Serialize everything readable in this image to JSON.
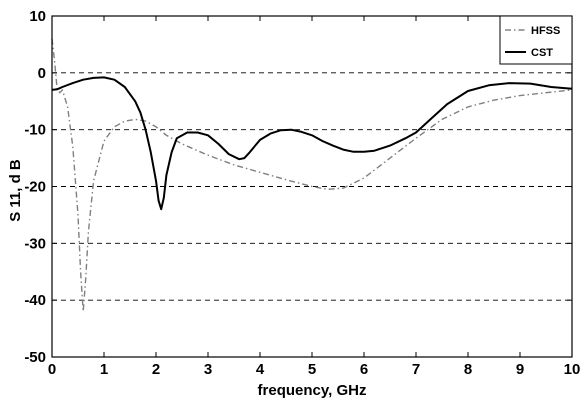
{
  "chart_data": {
    "type": "line",
    "title": "",
    "xlabel": "frequency, GHz",
    "ylabel": "S 11, d B",
    "xlim": [
      0,
      10
    ],
    "ylim": [
      -50,
      10
    ],
    "xticks": [
      "0",
      "1",
      "2",
      "3",
      "4",
      "5",
      "6",
      "7",
      "8",
      "9",
      "10"
    ],
    "yticks": [
      "10",
      "0",
      "-10",
      "-20",
      "-30",
      "-40",
      "-50"
    ],
    "grid": "horizontal dashed",
    "legend_position": "top-right",
    "series": [
      {
        "name": "HFSS",
        "color": "#808080",
        "style": "dash-dot",
        "x": [
          0.0,
          0.05,
          0.1,
          0.15,
          0.2,
          0.3,
          0.4,
          0.5,
          0.55,
          0.6,
          0.65,
          0.7,
          0.8,
          1.0,
          1.2,
          1.4,
          1.6,
          1.8,
          2.0,
          2.2,
          2.5,
          3.0,
          3.5,
          4.0,
          4.5,
          5.0,
          5.3,
          5.6,
          6.0,
          6.5,
          7.0,
          7.5,
          8.0,
          8.5,
          9.0,
          9.5,
          10.0
        ],
        "y": [
          6,
          2,
          -3,
          -3.5,
          -3,
          -6,
          -13,
          -25,
          -35,
          -42,
          -36,
          -28,
          -19,
          -12,
          -9.5,
          -8.5,
          -8.2,
          -8.5,
          -9.5,
          -11,
          -12.5,
          -14.5,
          -16.2,
          -17.5,
          -18.8,
          -20,
          -20.5,
          -20.3,
          -18.5,
          -15,
          -11.5,
          -8.2,
          -6,
          -4.8,
          -4,
          -3.5,
          -3
        ]
      },
      {
        "name": "CST",
        "color": "#000000",
        "style": "solid",
        "x": [
          0.0,
          0.1,
          0.2,
          0.4,
          0.6,
          0.8,
          1.0,
          1.2,
          1.4,
          1.6,
          1.7,
          1.8,
          1.9,
          2.0,
          2.05,
          2.1,
          2.15,
          2.2,
          2.3,
          2.4,
          2.6,
          2.8,
          3.0,
          3.2,
          3.4,
          3.6,
          3.7,
          3.8,
          4.0,
          4.2,
          4.4,
          4.6,
          4.8,
          5.0,
          5.2,
          5.4,
          5.6,
          5.8,
          6.0,
          6.2,
          6.5,
          6.8,
          7.0,
          7.3,
          7.6,
          8.0,
          8.4,
          8.8,
          9.2,
          9.6,
          10.0
        ],
        "y": [
          -3,
          -2.9,
          -2.5,
          -1.8,
          -1.2,
          -0.9,
          -0.8,
          -1.2,
          -2.5,
          -5,
          -7,
          -10,
          -14,
          -19,
          -22.5,
          -24,
          -22,
          -18,
          -14,
          -11.5,
          -10.5,
          -10.5,
          -11,
          -12.5,
          -14.3,
          -15.2,
          -15,
          -14,
          -11.8,
          -10.7,
          -10.1,
          -10,
          -10.4,
          -11,
          -12,
          -12.8,
          -13.5,
          -13.9,
          -13.9,
          -13.7,
          -12.8,
          -11.5,
          -10.5,
          -8,
          -5.5,
          -3.2,
          -2.2,
          -1.8,
          -1.9,
          -2.5,
          -2.8
        ]
      }
    ]
  }
}
